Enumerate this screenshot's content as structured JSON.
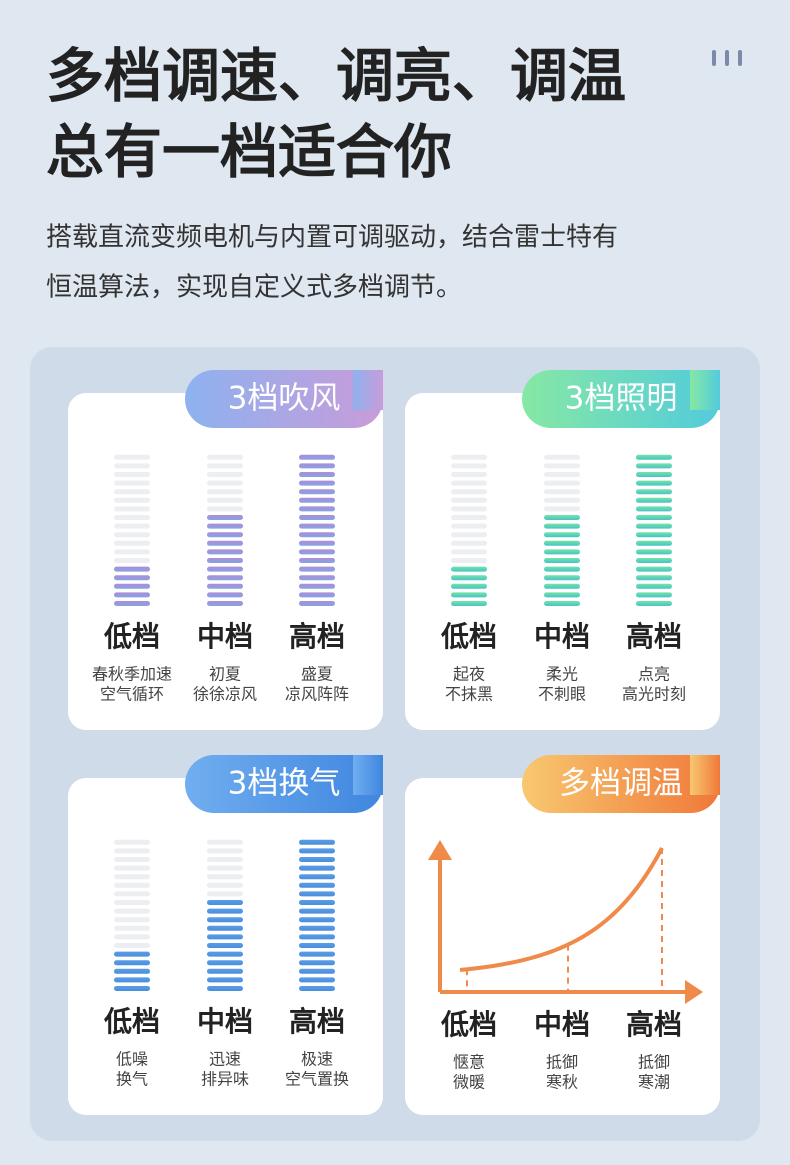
{
  "header": {
    "title_lines": [
      "多档调速、调亮、调温",
      "总有一档适合你"
    ],
    "description_lines": [
      "搭载直流变频电机与内置可调驱动，结合雷士特有",
      "恒温算法，实现自定义式多档调节。"
    ]
  },
  "cards": [
    {
      "tag": "3档吹风",
      "gears": [
        {
          "name": "低档",
          "desc": [
            "春秋季加速",
            "空气循环"
          ]
        },
        {
          "name": "中档",
          "desc": [
            "初夏",
            "徐徐凉风"
          ]
        },
        {
          "name": "高档",
          "desc": [
            "盛夏",
            "凉风阵阵"
          ]
        }
      ]
    },
    {
      "tag": "3档照明",
      "gears": [
        {
          "name": "低档",
          "desc": [
            "起夜",
            "不抹黑"
          ]
        },
        {
          "name": "中档",
          "desc": [
            "柔光",
            "不刺眼"
          ]
        },
        {
          "name": "高档",
          "desc": [
            "点亮",
            "高光时刻"
          ]
        }
      ]
    },
    {
      "tag": "3档换气",
      "gears": [
        {
          "name": "低档",
          "desc": [
            "低噪",
            "换气"
          ]
        },
        {
          "name": "中档",
          "desc": [
            "迅速",
            "排异味"
          ]
        },
        {
          "name": "高档",
          "desc": [
            "极速",
            "空气置换"
          ]
        }
      ]
    },
    {
      "tag": "多档调温",
      "gears": [
        {
          "name": "低档",
          "desc": [
            "惬意",
            "微暖"
          ]
        },
        {
          "name": "中档",
          "desc": [
            "抵御",
            "寒秋"
          ]
        },
        {
          "name": "高档",
          "desc": [
            "抵御",
            "寒潮"
          ]
        }
      ]
    }
  ]
}
